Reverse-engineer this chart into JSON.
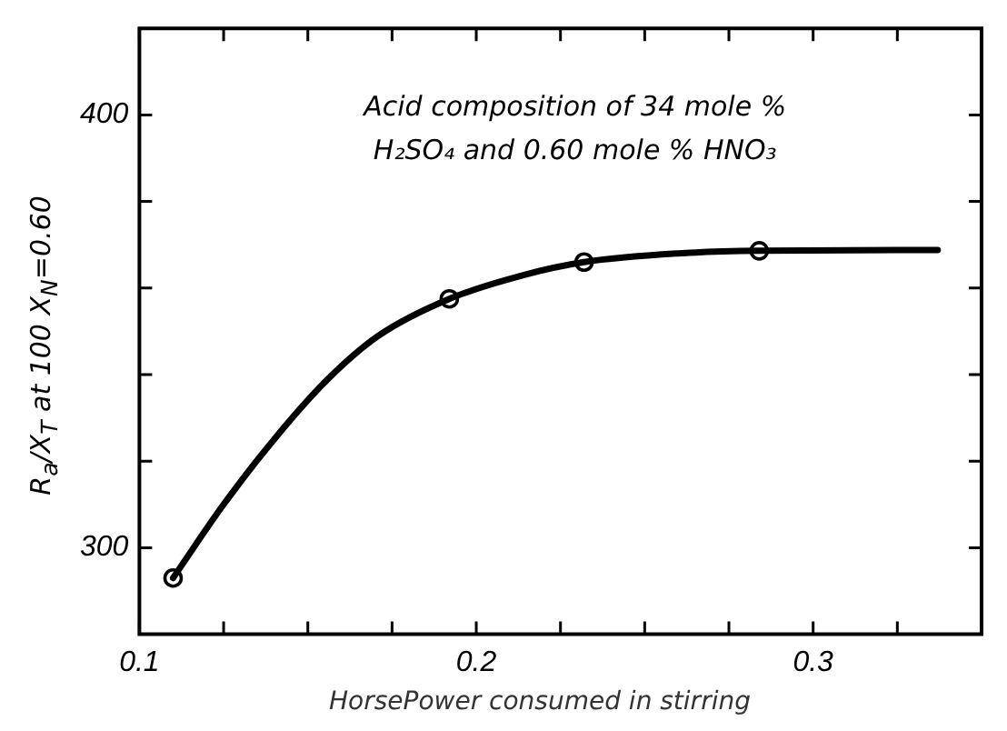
{
  "chart_data": {
    "type": "line",
    "xlabel": "HorsePower consumed in stirring",
    "ylabel": "R$_{a}$/X$_{T}$ at 100 X$_{N}$=0.60",
    "annotations": [
      "Acid composition of 34 mole %",
      "H₂SO₄ and 0.60 mole % HNO₃"
    ],
    "xlim": [
      0.1,
      0.35
    ],
    "ylim": [
      280,
      420
    ],
    "xticks": [
      0.1,
      {
        "value": 0.125,
        "label": null
      },
      {
        "value": 0.15,
        "label": null
      },
      {
        "value": 0.175,
        "label": null
      },
      0.2,
      {
        "value": 0.225,
        "label": null
      },
      {
        "value": 0.25,
        "label": null
      },
      {
        "value": 0.275,
        "label": null
      },
      0.3,
      {
        "value": 0.325,
        "label": null
      }
    ],
    "yticks": [
      300,
      {
        "value": 320,
        "label": null
      },
      {
        "value": 340,
        "label": null
      },
      {
        "value": 360,
        "label": null
      },
      {
        "value": 380,
        "label": null
      },
      400
    ],
    "grid": false,
    "legend": false,
    "series": [
      {
        "color": "#000000",
        "marker": "none",
        "x": [
          0.11,
          0.125,
          0.141,
          0.156,
          0.171,
          0.192,
          0.214,
          0.232,
          0.26,
          0.284,
          0.337
        ],
        "values": [
          293,
          310,
          326,
          339,
          349,
          357.5,
          363,
          366,
          368,
          368.6,
          368.8
        ]
      },
      {
        "type": "scatter",
        "color": "#000000",
        "marker": "circle",
        "x": [
          0.11,
          0.192,
          0.232,
          0.284
        ],
        "values": [
          293,
          357.5,
          366,
          368.6
        ]
      }
    ]
  }
}
